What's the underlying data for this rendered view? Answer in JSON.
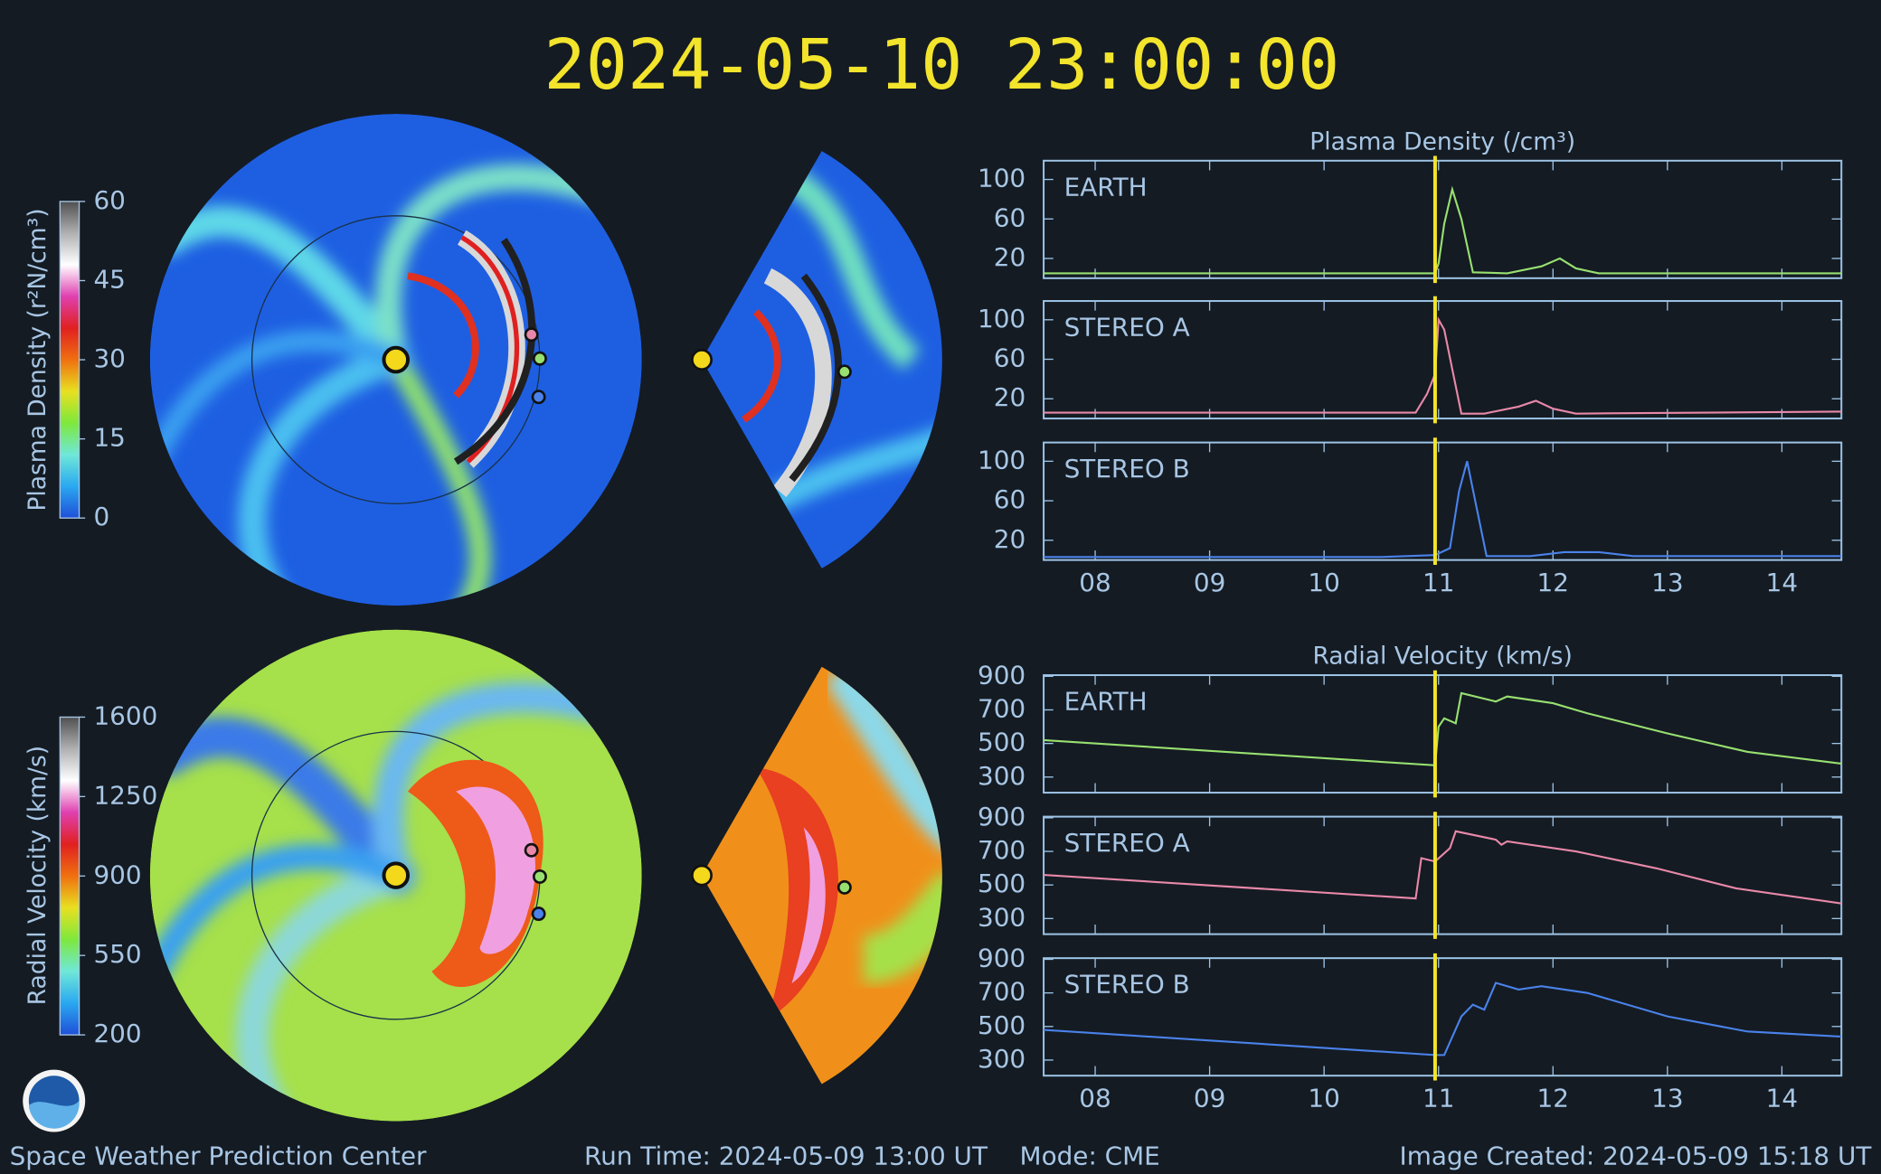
{
  "title": "2024-05-10  23:00:00",
  "footer": {
    "center": "Space Weather Prediction Center",
    "run_time": "Run Time: 2024-05-09 13:00 UT",
    "mode": "Mode: CME",
    "created": "Image Created: 2024-05-09 15:18 UT"
  },
  "chart_data": [
    {
      "type": "colorbar",
      "label": "Plasma Density (r²N/cm³)",
      "ylim": [
        0,
        60
      ],
      "yticks": [
        0,
        15,
        30,
        45,
        60
      ],
      "colors": [
        "#1f4fd8",
        "#2aa8f0",
        "#6fe8d8",
        "#7ee83c",
        "#e8e020",
        "#f07010",
        "#e02020",
        "#e040b0",
        "#ffffff",
        "#b0b0b0",
        "#505050"
      ]
    },
    {
      "type": "colorbar",
      "label": "Radial Velocity (km/s)",
      "ylim": [
        200,
        1600
      ],
      "yticks": [
        200,
        550,
        900,
        1250,
        1600
      ],
      "colors": [
        "#1f4fd8",
        "#2aa8f0",
        "#6fe8d8",
        "#7ee83c",
        "#e8e020",
        "#f07010",
        "#e02020",
        "#e040b0",
        "#ffffff",
        "#b0b0b0",
        "#505050"
      ]
    },
    {
      "type": "line",
      "title": "Plasma Density (/cm³)",
      "xlim": [
        7.55,
        14.52
      ],
      "ylim": [
        0,
        119
      ],
      "yticks": [
        20,
        60,
        100
      ],
      "now_x": 10.97,
      "x": [
        7.55,
        10.97,
        11.0,
        11.05,
        11.12,
        11.2,
        11.3,
        11.6,
        11.9,
        12.06,
        12.2,
        12.4,
        14.52
      ],
      "series": [
        {
          "name": "EARTH",
          "color": "#98e070",
          "values": [
            5,
            5,
            15,
            55,
            90,
            60,
            6,
            5,
            12,
            20,
            10,
            5,
            5
          ]
        }
      ]
    },
    {
      "type": "line",
      "xlim": [
        7.55,
        14.52
      ],
      "ylim": [
        0,
        119
      ],
      "yticks": [
        20,
        60,
        100
      ],
      "now_x": 10.97,
      "x": [
        7.55,
        10.8,
        10.9,
        10.97,
        11.0,
        11.05,
        11.12,
        11.2,
        11.4,
        11.7,
        11.85,
        12.0,
        12.2,
        14.52
      ],
      "series": [
        {
          "name": "STEREO A",
          "color": "#e888a8",
          "values": [
            6,
            6,
            25,
            45,
            100,
            90,
            50,
            5,
            5,
            12,
            18,
            10,
            5,
            7
          ]
        }
      ]
    },
    {
      "type": "line",
      "xlim": [
        7.55,
        14.52
      ],
      "ylim": [
        0,
        119
      ],
      "yticks": [
        20,
        60,
        100
      ],
      "now_x": 10.97,
      "xticks": [
        {
          "value": 8,
          "label": "08"
        },
        {
          "value": 9,
          "label": "09"
        },
        10,
        11,
        12,
        13,
        14
      ],
      "x": [
        7.55,
        10.5,
        10.97,
        11.1,
        11.18,
        11.25,
        11.32,
        11.42,
        11.8,
        12.1,
        12.4,
        12.7,
        14.52
      ],
      "series": [
        {
          "name": "STEREO B",
          "color": "#4a82ea",
          "values": [
            3,
            3,
            5,
            12,
            70,
            100,
            60,
            4,
            4,
            8,
            8,
            4,
            4
          ]
        }
      ]
    },
    {
      "type": "line",
      "title": "Radial Velocity (km/s)",
      "xlim": [
        7.55,
        14.52
      ],
      "ylim": [
        207,
        907
      ],
      "yticks": [
        300,
        500,
        700,
        900
      ],
      "now_x": 10.97,
      "x": [
        7.55,
        10.97,
        11.0,
        11.05,
        11.15,
        11.2,
        11.5,
        11.6,
        12.0,
        12.3,
        13.0,
        13.7,
        14.52
      ],
      "series": [
        {
          "name": "EARTH",
          "color": "#98e070",
          "values": [
            520,
            370,
            600,
            650,
            620,
            800,
            750,
            780,
            740,
            680,
            560,
            450,
            380
          ]
        }
      ]
    },
    {
      "type": "line",
      "xlim": [
        7.55,
        14.52
      ],
      "ylim": [
        207,
        907
      ],
      "yticks": [
        300,
        500,
        700,
        900
      ],
      "now_x": 10.97,
      "x": [
        7.55,
        10.8,
        10.85,
        10.97,
        11.1,
        11.15,
        11.5,
        11.55,
        11.6,
        12.2,
        12.9,
        13.6,
        14.52
      ],
      "series": [
        {
          "name": "STEREO A",
          "color": "#e888a8",
          "values": [
            560,
            420,
            660,
            640,
            720,
            820,
            770,
            740,
            760,
            700,
            600,
            480,
            390
          ]
        }
      ]
    },
    {
      "type": "line",
      "xlim": [
        7.55,
        14.52
      ],
      "ylim": [
        207,
        907
      ],
      "yticks": [
        300,
        500,
        700,
        900
      ],
      "now_x": 10.97,
      "xticks": [
        {
          "value": 8,
          "label": "08"
        },
        {
          "value": 9,
          "label": "09"
        },
        10,
        11,
        12,
        13,
        14
      ],
      "x": [
        7.55,
        10.97,
        11.05,
        11.2,
        11.3,
        11.4,
        11.5,
        11.7,
        11.9,
        12.3,
        13.0,
        13.7,
        14.52
      ],
      "series": [
        {
          "name": "STEREO B",
          "color": "#4a82ea",
          "values": [
            480,
            330,
            330,
            560,
            630,
            600,
            760,
            720,
            740,
            700,
            560,
            470,
            440
          ]
        }
      ]
    }
  ]
}
